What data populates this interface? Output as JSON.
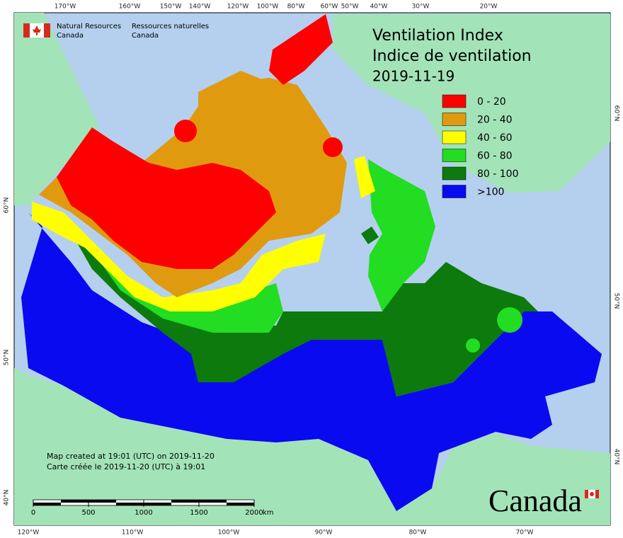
{
  "header": {
    "agency_en": [
      "Natural Resources",
      "Canada"
    ],
    "agency_fr": [
      "Ressources naturelles",
      "Canada"
    ]
  },
  "title": [
    "Ventilation Index",
    "Indice de ventilation",
    "2019-11-19"
  ],
  "legend": [
    {
      "label": "0 - 20",
      "color": "#ff0000"
    },
    {
      "label": "20 - 40",
      "color": "#e09a10"
    },
    {
      "label": "40 - 60",
      "color": "#ffff00"
    },
    {
      "label": "60 - 80",
      "color": "#22dd22"
    },
    {
      "label": "80 - 100",
      "color": "#0c7a0c"
    },
    {
      "label": ">100",
      "color": "#0a0af0"
    }
  ],
  "graticule": {
    "top": [
      "170°W",
      "160°W",
      "150°W",
      "140°W",
      "120°W",
      "100°W",
      "80°W",
      "60°W",
      "50°W",
      "40°W",
      "30°W",
      "20°W"
    ],
    "bottom": [
      "120°W",
      "110°W",
      "100°W",
      "90°W",
      "80°W",
      "70°W"
    ],
    "left": [
      "60°N",
      "50°N",
      "40°N"
    ],
    "right": [
      "60°N",
      "50°N",
      "40°N"
    ]
  },
  "footer": [
    "Map created at 19:01 (UTC) on 2019-11-20",
    "Carte créée le 2019-11-20 (UTC) à 19:01"
  ],
  "scale_bar": {
    "ticks": [
      0,
      500,
      1000,
      1500,
      2000
    ],
    "unit": "km"
  },
  "wordmark": "Canada"
}
